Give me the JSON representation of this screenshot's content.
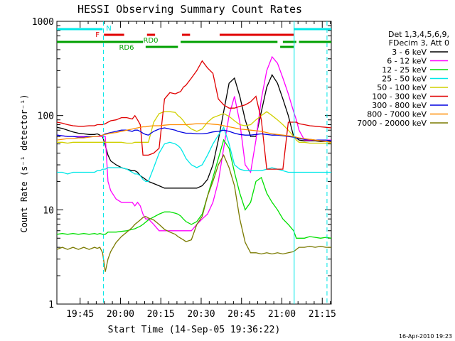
{
  "chart_data": {
    "type": "line",
    "title": "HESSI Observing Summary Count Rates",
    "xlabel": "Start Time (14-Sep-05 19:36:22)",
    "ylabel": "Count Rate (s⁻¹ detector⁻¹)",
    "x_unit": "minutes after 19:36:22 UT",
    "xlim": [
      0,
      102
    ],
    "ylim": [
      1,
      1000
    ],
    "yscale": "log",
    "x_ticks": [
      "19:45",
      "20:00",
      "20:15",
      "20:30",
      "20:45",
      "21:00",
      "21:15"
    ],
    "y_ticks": [
      "1",
      "10",
      "100",
      "1000"
    ],
    "legend_header": [
      "Det 1,3,4,5,6,9,",
      "FDecim 3, Att 0"
    ],
    "legend_position": "right",
    "footer": "16-Apr-2010 19:23",
    "flags": {
      "N": {
        "label": "N",
        "color": "#00e8e8",
        "segments": [
          [
            0,
            17
          ],
          [
            88,
            102
          ]
        ],
        "markers": [
          17.3,
          88.2,
          100.4
        ]
      },
      "F": {
        "label": "F",
        "color": "#e00000",
        "segments": [
          [
            17.5,
            25
          ],
          [
            33.5,
            36.5
          ],
          [
            46.5,
            49.5
          ],
          [
            60.5,
            88
          ]
        ]
      },
      "RD0": {
        "label": "RD0",
        "color": "#00a000",
        "segments": [
          [
            0,
            32
          ],
          [
            46,
            82
          ],
          [
            84,
            89
          ],
          [
            90,
            102
          ]
        ]
      },
      "RD6": {
        "label": "RD6",
        "color": "#00a000",
        "segments": [
          [
            33,
            45
          ],
          [
            83,
            88
          ]
        ]
      }
    },
    "series": [
      {
        "name": "3 - 6 keV",
        "color": "#000000",
        "x": [
          0,
          2,
          4,
          6,
          8,
          10,
          12,
          14,
          15,
          16,
          17,
          18,
          19,
          20,
          22,
          24,
          26,
          28,
          29,
          30,
          31,
          32,
          33,
          34,
          36,
          38,
          40,
          42,
          44,
          45,
          46,
          47,
          48,
          50,
          52,
          54,
          56,
          58,
          60,
          62,
          64,
          66,
          68,
          70,
          72,
          74,
          76,
          78,
          80,
          82,
          84,
          86,
          88,
          89,
          90,
          92,
          94,
          96,
          98,
          100,
          102
        ],
        "y": [
          75,
          73,
          70,
          67,
          65,
          64,
          63,
          63,
          64,
          62,
          60,
          48,
          38,
          33,
          30,
          28,
          27,
          26,
          26,
          25,
          23,
          22,
          21,
          20,
          19,
          18,
          17,
          17,
          17,
          17,
          17,
          17,
          17,
          17,
          17,
          18,
          21,
          30,
          55,
          110,
          220,
          250,
          160,
          90,
          60,
          60,
          110,
          200,
          270,
          220,
          150,
          100,
          60,
          58,
          55,
          54,
          54,
          54,
          53,
          53,
          53
        ]
      },
      {
        "name": "6 - 12 keV",
        "color": "#ff00ff",
        "x": [
          0,
          2,
          4,
          6,
          8,
          10,
          12,
          14,
          15,
          16,
          17,
          18,
          19,
          20,
          22,
          24,
          26,
          28,
          29,
          30,
          31,
          32,
          33,
          34,
          36,
          38,
          40,
          42,
          44,
          45,
          46,
          47,
          48,
          50,
          52,
          54,
          56,
          58,
          60,
          62,
          64,
          66,
          68,
          70,
          72,
          74,
          76,
          78,
          80,
          82,
          84,
          86,
          88,
          89,
          90,
          92,
          94,
          96,
          98,
          100,
          102
        ],
        "y": [
          62,
          61,
          60,
          60,
          60,
          60,
          60,
          60,
          60,
          60,
          60,
          60,
          20,
          16,
          13,
          12,
          12,
          12,
          11,
          12,
          11,
          9,
          8,
          8,
          7,
          6,
          6,
          6,
          6,
          6,
          6,
          6,
          6,
          6,
          7,
          8,
          9,
          12,
          20,
          45,
          100,
          160,
          85,
          30,
          25,
          55,
          150,
          300,
          420,
          360,
          250,
          170,
          110,
          90,
          70,
          55,
          55,
          55,
          55,
          55,
          55
        ]
      },
      {
        "name": "12 - 25 keV",
        "color": "#00e000",
        "x": [
          0,
          2,
          4,
          6,
          8,
          10,
          12,
          14,
          15,
          16,
          17,
          18,
          19,
          20,
          22,
          24,
          26,
          28,
          29,
          30,
          31,
          32,
          33,
          34,
          36,
          38,
          40,
          42,
          44,
          45,
          46,
          47,
          48,
          50,
          52,
          54,
          56,
          58,
          60,
          62,
          64,
          66,
          68,
          70,
          72,
          74,
          76,
          78,
          80,
          82,
          84,
          86,
          88,
          89,
          90,
          92,
          94,
          96,
          98,
          100,
          102
        ],
        "y": [
          5.5,
          5.6,
          5.5,
          5.6,
          5.5,
          5.6,
          5.5,
          5.6,
          5.5,
          5.6,
          5.5,
          5.5,
          5.8,
          5.8,
          5.8,
          5.9,
          6.0,
          6.2,
          6.3,
          6.5,
          6.7,
          7.0,
          7.4,
          7.8,
          8.4,
          9.0,
          9.5,
          9.5,
          9.2,
          9.0,
          8.6,
          8.0,
          7.5,
          7.0,
          7.5,
          9,
          14,
          22,
          35,
          55,
          45,
          25,
          15,
          10,
          12,
          20,
          22,
          15,
          12,
          10,
          8,
          7,
          6,
          5,
          5,
          5,
          5.2,
          5.1,
          5,
          5.1,
          5
        ]
      },
      {
        "name": "25 - 50 keV",
        "color": "#00e8e8",
        "x": [
          0,
          2,
          4,
          6,
          8,
          10,
          12,
          14,
          15,
          16,
          17,
          18,
          19,
          20,
          22,
          24,
          26,
          28,
          29,
          30,
          31,
          32,
          33,
          34,
          36,
          38,
          40,
          42,
          44,
          45,
          46,
          47,
          48,
          50,
          52,
          54,
          56,
          58,
          60,
          62,
          64,
          66,
          68,
          70,
          72,
          74,
          76,
          78,
          80,
          82,
          84,
          86,
          88,
          89,
          90,
          92,
          94,
          96,
          98,
          100,
          102
        ],
        "y": [
          25,
          25,
          24,
          25,
          25,
          25,
          25,
          25,
          26,
          26,
          27,
          27,
          28,
          28,
          28,
          28,
          27,
          25,
          24,
          24,
          23,
          21,
          20,
          20,
          28,
          40,
          50,
          52,
          50,
          48,
          45,
          40,
          35,
          30,
          28,
          30,
          38,
          50,
          62,
          75,
          50,
          30,
          27,
          26,
          26,
          26,
          26,
          27,
          28,
          27,
          26,
          25,
          25,
          25,
          25,
          25,
          25,
          25,
          25,
          25,
          25
        ]
      },
      {
        "name": "50 - 100 keV",
        "color": "#d0d000",
        "x": [
          0,
          2,
          4,
          6,
          8,
          10,
          12,
          14,
          15,
          16,
          17,
          18,
          19,
          20,
          22,
          24,
          26,
          28,
          29,
          30,
          31,
          32,
          33,
          34,
          36,
          38,
          40,
          42,
          44,
          45,
          46,
          47,
          48,
          50,
          52,
          54,
          56,
          58,
          60,
          62,
          64,
          66,
          68,
          70,
          72,
          74,
          76,
          78,
          80,
          82,
          84,
          86,
          88,
          89,
          90,
          92,
          94,
          96,
          98,
          100,
          102
        ],
        "y": [
          52,
          52,
          51,
          52,
          52,
          52,
          52,
          52,
          52,
          52,
          52,
          52,
          52,
          52,
          52,
          52,
          51,
          51,
          52,
          52,
          52,
          52,
          52,
          52,
          85,
          105,
          110,
          110,
          108,
          100,
          95,
          88,
          80,
          72,
          68,
          72,
          85,
          95,
          100,
          105,
          98,
          88,
          80,
          78,
          80,
          90,
          100,
          110,
          100,
          90,
          80,
          70,
          60,
          55,
          52,
          52,
          51,
          51,
          51,
          51,
          51
        ]
      },
      {
        "name": "100 - 300 keV",
        "color": "#e00000",
        "x": [
          0,
          2,
          4,
          6,
          8,
          10,
          12,
          14,
          15,
          16,
          17,
          18,
          19,
          20,
          22,
          24,
          26,
          28,
          29,
          30,
          31,
          32,
          33,
          34,
          36,
          38,
          40,
          42,
          44,
          45,
          46,
          47,
          48,
          50,
          52,
          54,
          56,
          58,
          60,
          62,
          64,
          66,
          68,
          70,
          72,
          74,
          76,
          78,
          80,
          82,
          84,
          86,
          88,
          89,
          90,
          92,
          94,
          96,
          98,
          100,
          102
        ],
        "y": [
          85,
          83,
          80,
          78,
          77,
          77,
          78,
          78,
          80,
          80,
          80,
          82,
          85,
          88,
          90,
          95,
          95,
          92,
          100,
          90,
          80,
          38,
          38,
          38,
          40,
          45,
          150,
          175,
          170,
          175,
          180,
          200,
          210,
          250,
          300,
          380,
          320,
          280,
          150,
          130,
          120,
          120,
          125,
          130,
          140,
          160,
          90,
          27,
          27,
          27,
          27,
          85,
          85,
          85,
          82,
          80,
          78,
          77,
          76,
          75,
          74
        ]
      },
      {
        "name": "300 - 800 keV",
        "color": "#0000e0",
        "x": [
          0,
          2,
          4,
          6,
          8,
          10,
          12,
          14,
          15,
          16,
          17,
          18,
          19,
          20,
          22,
          24,
          26,
          28,
          29,
          30,
          31,
          32,
          33,
          34,
          36,
          38,
          40,
          42,
          44,
          45,
          46,
          47,
          48,
          50,
          52,
          54,
          56,
          58,
          60,
          62,
          64,
          66,
          68,
          70,
          72,
          74,
          76,
          78,
          80,
          82,
          84,
          86,
          88,
          89,
          90,
          92,
          94,
          96,
          98,
          100,
          102
        ],
        "y": [
          62,
          61,
          60,
          60,
          59,
          59,
          60,
          60,
          60,
          61,
          62,
          64,
          65,
          66,
          68,
          70,
          70,
          68,
          70,
          70,
          68,
          65,
          63,
          62,
          68,
          72,
          74,
          72,
          70,
          68,
          67,
          66,
          65,
          65,
          64,
          64,
          65,
          67,
          68,
          70,
          68,
          65,
          63,
          62,
          62,
          63,
          64,
          63,
          62,
          62,
          61,
          60,
          59,
          58,
          57,
          56,
          56,
          55,
          55,
          55,
          54
        ]
      },
      {
        "name": "800 - 7000 keV",
        "color": "#ff8c00",
        "x": [
          0,
          2,
          4,
          6,
          8,
          10,
          12,
          14,
          15,
          16,
          17,
          18,
          19,
          20,
          22,
          24,
          26,
          28,
          29,
          30,
          31,
          32,
          33,
          34,
          36,
          38,
          40,
          42,
          44,
          45,
          46,
          47,
          48,
          50,
          52,
          54,
          56,
          58,
          60,
          62,
          64,
          66,
          68,
          70,
          72,
          74,
          76,
          78,
          80,
          82,
          84,
          86,
          88,
          89,
          90,
          92,
          94,
          96,
          98,
          100,
          102
        ],
        "y": [
          55,
          56,
          57,
          57,
          58,
          58,
          59,
          60,
          60,
          61,
          62,
          63,
          64,
          65,
          66,
          68,
          70,
          72,
          73,
          74,
          75,
          76,
          76,
          77,
          78,
          78,
          79,
          80,
          80,
          80,
          80,
          80,
          80,
          81,
          82,
          82,
          82,
          81,
          80,
          78,
          76,
          74,
          72,
          71,
          70,
          69,
          68,
          66,
          64,
          63,
          62,
          61,
          60,
          59,
          58,
          57,
          56,
          55,
          54,
          53,
          52
        ]
      },
      {
        "name": "7000 - 20000 keV",
        "color": "#7a7a00",
        "x": [
          0,
          2,
          4,
          6,
          8,
          10,
          12,
          14,
          15,
          16,
          17,
          18,
          19,
          20,
          22,
          24,
          26,
          28,
          29,
          30,
          31,
          32,
          33,
          34,
          36,
          38,
          40,
          42,
          44,
          45,
          46,
          47,
          48,
          50,
          52,
          54,
          56,
          58,
          60,
          62,
          64,
          66,
          68,
          70,
          72,
          74,
          76,
          78,
          80,
          82,
          84,
          86,
          88,
          89,
          90,
          92,
          94,
          96,
          98,
          100,
          102
        ],
        "y": [
          3.8,
          4.0,
          3.8,
          4.0,
          3.8,
          4.0,
          3.8,
          4.0,
          3.9,
          4.0,
          3.5,
          2.2,
          3.0,
          3.6,
          4.5,
          5.2,
          5.8,
          6.5,
          7.0,
          7.4,
          7.8,
          8.3,
          8.5,
          8.2,
          7.8,
          7.0,
          6.2,
          5.8,
          5.5,
          5.2,
          5.0,
          4.8,
          4.6,
          4.8,
          7.0,
          8.5,
          14,
          20,
          30,
          38,
          28,
          18,
          8,
          4.5,
          3.5,
          3.5,
          3.4,
          3.5,
          3.4,
          3.5,
          3.4,
          3.5,
          3.6,
          3.8,
          4.0,
          4.0,
          4.1,
          4.0,
          4.1,
          4.0,
          4.0
        ]
      }
    ]
  }
}
